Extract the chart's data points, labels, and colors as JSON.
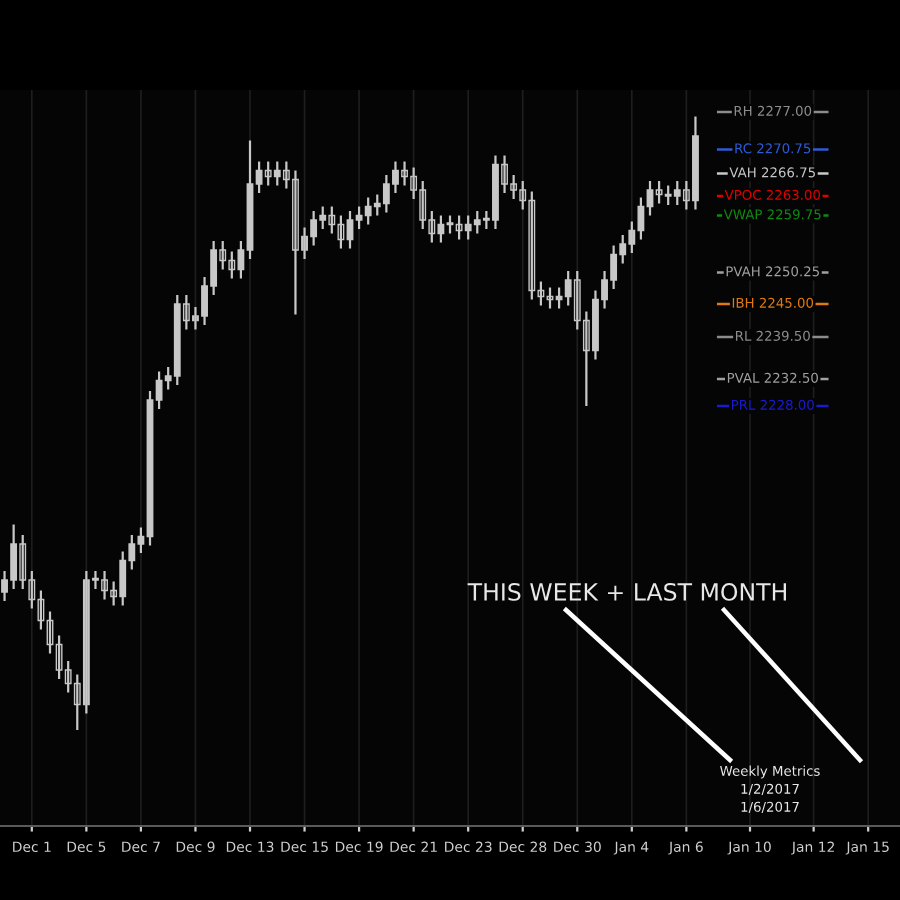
{
  "chart_data": {
    "type": "candlestick",
    "categories": [
      null,
      null,
      null,
      "Dec 1",
      null,
      null,
      null,
      null,
      null,
      "Dec 5",
      null,
      null,
      null,
      null,
      null,
      "Dec 7",
      null,
      null,
      null,
      null,
      null,
      "Dec 9",
      null,
      null,
      null,
      null,
      null,
      "Dec 13",
      null,
      null,
      null,
      null,
      null,
      "Dec 15",
      null,
      null,
      null,
      null,
      null,
      "Dec 19",
      null,
      null,
      null,
      null,
      null,
      "Dec 21",
      null,
      null,
      null,
      null,
      null,
      "Dec 23",
      null,
      null,
      null,
      null,
      null,
      "Dec 28",
      null,
      null,
      null,
      null,
      null,
      "Dec 30",
      null,
      null,
      null,
      null,
      null,
      "Jan 4",
      null,
      null,
      null,
      null,
      null,
      "Jan 6",
      null,
      null,
      null,
      null,
      null,
      null,
      "Jan 10",
      null,
      null,
      null,
      null,
      null,
      null,
      "Jan 12",
      null,
      null,
      null,
      null,
      null,
      "Jan 15",
      null,
      null,
      null
    ],
    "ohlc": [
      [
        2197,
        2200.5,
        2195.5,
        2199
      ],
      [
        2199,
        2208.25,
        2197.5,
        2205
      ],
      [
        2205,
        2206.5,
        2197.5,
        2199
      ],
      [
        2199,
        2200.5,
        2194.25,
        2195.75
      ],
      [
        2195.75,
        2197.25,
        2190.75,
        2192.25
      ],
      [
        2192.25,
        2193.75,
        2186.75,
        2188.25
      ],
      [
        2188.25,
        2189.75,
        2182.5,
        2184
      ],
      [
        2184,
        2185.5,
        2180.25,
        2181.75
      ],
      [
        2181.75,
        2183.25,
        2174,
        2178.25
      ],
      [
        2178.25,
        2200.5,
        2176.75,
        2199
      ],
      [
        2199,
        2200.5,
        2197.5,
        2199
      ],
      [
        2199,
        2200.5,
        2195.75,
        2197.25
      ],
      [
        2197.25,
        2198.75,
        2194.75,
        2196.25
      ],
      [
        2196.25,
        2203.75,
        2194.75,
        2202.25
      ],
      [
        2202.25,
        2206.5,
        2200.75,
        2205
      ],
      [
        2205,
        2207.75,
        2203.5,
        2206.25
      ],
      [
        2206.25,
        2230.5,
        2204.75,
        2229
      ],
      [
        2229,
        2233.75,
        2227.5,
        2232.25
      ],
      [
        2232.25,
        2234.5,
        2230.75,
        2233
      ],
      [
        2233,
        2246.5,
        2231.5,
        2245
      ],
      [
        2245,
        2246.5,
        2240.75,
        2242.25
      ],
      [
        2242.25,
        2244.5,
        2240.75,
        2243
      ],
      [
        2243,
        2249.5,
        2241.5,
        2248
      ],
      [
        2248,
        2255.5,
        2246.5,
        2254
      ],
      [
        2254,
        2255.5,
        2250.75,
        2252.25
      ],
      [
        2252.25,
        2253.75,
        2249.25,
        2250.75
      ],
      [
        2250.75,
        2255.5,
        2249.25,
        2254
      ],
      [
        2254,
        2272.25,
        2252.5,
        2265
      ],
      [
        2265,
        2268.75,
        2263.5,
        2267.25
      ],
      [
        2267.25,
        2268.75,
        2264.75,
        2266.25
      ],
      [
        2266.25,
        2268.75,
        2264.75,
        2267.25
      ],
      [
        2267.25,
        2268.75,
        2264.25,
        2265.75
      ],
      [
        2265.75,
        2267.25,
        2243.25,
        2254
      ],
      [
        2254,
        2257.75,
        2252.5,
        2256.25
      ],
      [
        2256.25,
        2260.5,
        2254.75,
        2259
      ],
      [
        2259,
        2261.25,
        2257.5,
        2259.75
      ],
      [
        2259.75,
        2261.25,
        2256.75,
        2258.25
      ],
      [
        2258.25,
        2259.75,
        2254.25,
        2255.75
      ],
      [
        2255.75,
        2260.5,
        2254.25,
        2259
      ],
      [
        2259,
        2261.25,
        2257.5,
        2259.75
      ],
      [
        2259.75,
        2262.75,
        2258.25,
        2261.25
      ],
      [
        2261.25,
        2263.25,
        2259.75,
        2261.75
      ],
      [
        2261.75,
        2266.5,
        2260.25,
        2265
      ],
      [
        2265,
        2268.75,
        2263.5,
        2267.25
      ],
      [
        2267.25,
        2268.75,
        2264.75,
        2266.25
      ],
      [
        2266.25,
        2267.75,
        2262.5,
        2264
      ],
      [
        2264,
        2265.5,
        2257.5,
        2259
      ],
      [
        2259,
        2260.5,
        2255.25,
        2256.75
      ],
      [
        2256.75,
        2259.75,
        2255.25,
        2258.25
      ],
      [
        2258.25,
        2259.75,
        2256.75,
        2258.25
      ],
      [
        2258.25,
        2259.75,
        2255.75,
        2257.25
      ],
      [
        2257.25,
        2259.75,
        2255.75,
        2258.25
      ],
      [
        2258.25,
        2260.5,
        2256.75,
        2259
      ],
      [
        2259,
        2260.5,
        2257.5,
        2259
      ],
      [
        2259,
        2269.75,
        2257.5,
        2268.25
      ],
      [
        2268.25,
        2269.75,
        2263.5,
        2265
      ],
      [
        2265,
        2266.5,
        2262.5,
        2264
      ],
      [
        2264,
        2265.5,
        2260.75,
        2262.25
      ],
      [
        2262.25,
        2263.75,
        2245.75,
        2247.25
      ],
      [
        2247.25,
        2248.75,
        2244.75,
        2246.25
      ],
      [
        2246.25,
        2247.75,
        2244.25,
        2245.75
      ],
      [
        2245.75,
        2247.75,
        2244.25,
        2246.25
      ],
      [
        2246.25,
        2250.5,
        2244.75,
        2249
      ],
      [
        2249,
        2250.5,
        2240.75,
        2242.25
      ],
      [
        2242.25,
        2243.75,
        2228,
        2237.25
      ],
      [
        2237.25,
        2247.25,
        2235.75,
        2245.75
      ],
      [
        2245.75,
        2250.5,
        2244.25,
        2249
      ],
      [
        2249,
        2254.75,
        2247.5,
        2253.25
      ],
      [
        2253.25,
        2256.5,
        2251.75,
        2255
      ],
      [
        2255,
        2258.75,
        2253.5,
        2257.25
      ],
      [
        2257.25,
        2262.75,
        2255.75,
        2261.25
      ],
      [
        2261.25,
        2265.5,
        2259.75,
        2264
      ],
      [
        2264,
        2265.5,
        2261.75,
        2263.25
      ],
      [
        2263.25,
        2264.75,
        2261.5,
        2263
      ],
      [
        2263,
        2265.5,
        2261.5,
        2264
      ],
      [
        2264,
        2265.5,
        2260.75,
        2262.25
      ],
      [
        2262.25,
        2276.25,
        2260.75,
        2273
      ],
      null,
      null,
      null,
      null,
      null,
      null,
      null,
      null,
      null,
      null,
      null,
      null,
      null,
      null,
      null,
      null,
      null,
      null,
      null,
      null,
      null,
      null
    ],
    "color": "#c8c8c8",
    "ylim": [
      2158,
      2280.67
    ],
    "tick_labels": "x",
    "grid": "x",
    "ref_lines": [
      {
        "axis": "y",
        "value": 2277.0,
        "label": "RH 2277.00",
        "color": "#8c8c8c"
      },
      {
        "axis": "y",
        "value": 2270.75,
        "label": "RC 2270.75",
        "color": "#2e5bd6"
      },
      {
        "axis": "y",
        "value": 2266.75,
        "label": "VAH 2266.75",
        "color": "#c8c8c8"
      },
      {
        "axis": "y",
        "value": 2263.0,
        "label": "VPOC 2263.00",
        "color": "#e00000"
      },
      {
        "axis": "y",
        "value": 2259.75,
        "label": "VWAP 2259.75",
        "color": "#108a10"
      },
      {
        "axis": "y",
        "value": 2250.25,
        "label": "PVAH 2250.25",
        "color": "#a0a0a0"
      },
      {
        "axis": "y",
        "value": 2245.0,
        "label": "IBH 2245.00",
        "color": "#e07a10"
      },
      {
        "axis": "y",
        "value": 2239.5,
        "label": "RL 2239.50",
        "color": "#8c8c8c"
      },
      {
        "axis": "y",
        "value": 2232.5,
        "label": "PVAL 2232.50",
        "color": "#a0a0a0"
      },
      {
        "axis": "y",
        "value": 2228.0,
        "label": "PRL 2228.00",
        "color": "#1a1ad0"
      }
    ],
    "annotations": [
      "THIS WEEK + LAST MONTH",
      "Weekly Metrics\n1/2/2017\n1/6/2017"
    ]
  }
}
